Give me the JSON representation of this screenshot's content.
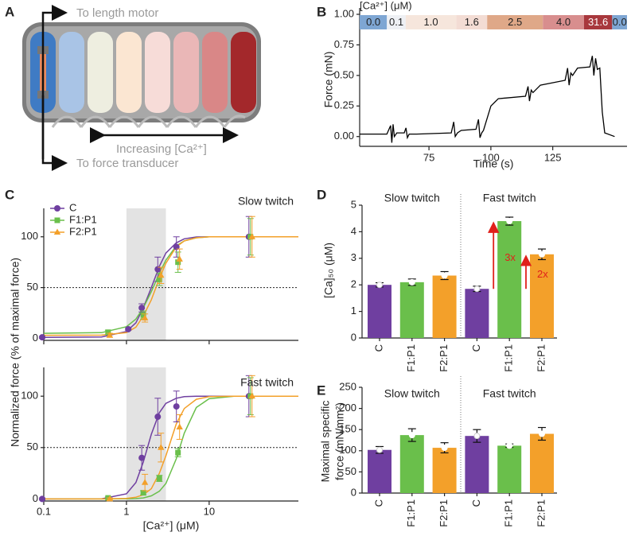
{
  "diagram": {
    "panel": "A",
    "labels": [
      "To length motor",
      "Increasing [Ca²⁺]",
      "To force transducer"
    ]
  },
  "chart_data": [
    {
      "panel": "B",
      "type": "line",
      "x_label": "Time (s)",
      "y_label": "Force (mN)",
      "xlim": [
        47,
        155
      ],
      "xticks": [
        75,
        100,
        125
      ],
      "ylim": [
        -0.08,
        1.0
      ],
      "yticks": [
        {
          "value": 0,
          "label": "0.00"
        },
        {
          "value": 0.25,
          "label": "0.25"
        },
        {
          "value": 0.5,
          "label": "0.50"
        },
        {
          "value": 0.75,
          "label": "0.75"
        },
        {
          "value": 1.0,
          "label": "1.00"
        }
      ],
      "color": "#000000",
      "x": [
        47,
        58,
        59.5,
        60,
        60.5,
        61,
        62,
        65,
        65.7,
        66.3,
        67,
        70,
        84,
        85,
        85.6,
        86.5,
        88,
        94,
        95,
        95.6,
        96.3,
        97,
        100,
        103,
        114,
        115,
        115.6,
        116.3,
        117,
        120,
        130,
        131,
        131.6,
        132.3,
        133,
        135,
        140,
        141,
        141.6,
        142.3,
        143,
        144,
        145,
        146,
        150
      ],
      "values": [
        0.02,
        0.02,
        0.09,
        -0.05,
        0.1,
        0.0,
        0.03,
        0.03,
        0.07,
        -0.01,
        0.02,
        0.02,
        0.03,
        0.12,
        0.0,
        0.03,
        0.05,
        0.06,
        0.14,
        -0.01,
        0.03,
        0.05,
        0.25,
        0.31,
        0.33,
        0.41,
        0.29,
        0.38,
        0.36,
        0.42,
        0.46,
        0.56,
        0.42,
        0.52,
        0.5,
        0.56,
        0.57,
        0.66,
        0.5,
        0.64,
        0.55,
        0.56,
        0.2,
        0.03,
        0.0
      ],
      "ca_bar": {
        "title": "[Ca²⁺] (μM)",
        "labels": [
          "0.0",
          "0.1",
          "1.0",
          "1.6",
          "2.5",
          "4.0",
          "31.6",
          "0.0"
        ],
        "edges": [
          47,
          58,
          65.6,
          86,
          98.5,
          121,
          137.6,
          149,
          155
        ],
        "colors": [
          "#7ea6d3",
          "#eef0f4",
          "#f6e6dc",
          "#f3dcd4",
          "#dfa888",
          "#d88e8e",
          "#a8383d",
          "#7ea6d3"
        ]
      }
    },
    {
      "panel": "C",
      "type": "scatter",
      "log_x": true,
      "x_label": "[Ca²⁺] (μM)",
      "y_label": "Normalized force (% of maximal force)",
      "xlim": [
        0.1,
        120
      ],
      "xticks": [
        0.1,
        1,
        10
      ],
      "shade": [
        1,
        3
      ],
      "reference_line": 50,
      "legend": "upper left",
      "subplots": [
        {
          "title": "Slow twitch",
          "ylim": [
            -2,
            128
          ],
          "yticks": [
            0,
            50,
            100
          ],
          "x": [
            0.1,
            0.6,
            1.1,
            1.6,
            2.5,
            4.2,
            31.6
          ],
          "series": [
            {
              "name": "C",
              "color": "#6f3fa0",
              "marker": "circle",
              "values": [
                1,
                null,
                9,
                30,
                68,
                90,
                100
              ],
              "errors": [
                1,
                null,
                1,
                4,
                12,
                10,
                20
              ]
            },
            {
              "name": "F1:P1",
              "color": "#6abf4b",
              "marker": "square",
              "values": [
                null,
                6,
                null,
                23,
                58,
                75,
                100
              ],
              "errors": [
                null,
                2,
                null,
                4,
                6,
                10,
                18
              ]
            },
            {
              "name": "F2:P1",
              "color": "#f3a02a",
              "marker": "triangle",
              "values": [
                null,
                3,
                null,
                20,
                62,
                78,
                100
              ],
              "errors": [
                null,
                2,
                null,
                4,
                8,
                10,
                20
              ]
            }
          ],
          "fit_x": [
            0.1,
            0.5,
            1,
            1.3,
            1.6,
            2,
            2.5,
            3,
            4,
            5,
            7,
            10,
            20,
            40,
            120
          ],
          "fits": [
            [
              1,
              1.4,
              6.8,
              15.3,
              30,
              50,
              71,
              84,
              94,
              98,
              99.8,
              100,
              100,
              100,
              100
            ],
            [
              5,
              5.6,
              11.5,
              19,
              30,
              46,
              64,
              77,
              91,
              96,
              99,
              100,
              100,
              100,
              100
            ],
            [
              3,
              3.2,
              5.6,
              11,
              22,
              38,
              59,
              74,
              90,
              96,
              99,
              100,
              100,
              100,
              100
            ]
          ]
        },
        {
          "title": "Fast twitch",
          "ylim": [
            -2,
            128
          ],
          "yticks": [
            0,
            50,
            100
          ],
          "x": [
            0.1,
            0.6,
            1.1,
            1.6,
            2.5,
            4.2,
            31.6
          ],
          "series": [
            {
              "color": "#6f3fa0",
              "marker": "circle",
              "values": [
                0,
                null,
                null,
                40,
                80,
                90,
                100
              ],
              "errors": [
                1,
                null,
                null,
                12,
                18,
                15,
                20
              ]
            },
            {
              "color": "#6abf4b",
              "marker": "square",
              "values": [
                null,
                1,
                null,
                6,
                20,
                45,
                100
              ],
              "errors": [
                null,
                1,
                null,
                2,
                3,
                4,
                18
              ]
            },
            {
              "color": "#f3a02a",
              "marker": "triangle",
              "values": [
                null,
                0,
                null,
                16,
                50,
                70,
                100
              ],
              "errors": [
                null,
                1,
                null,
                8,
                14,
                12,
                20
              ]
            }
          ],
          "fit_x": [
            0.1,
            0.5,
            1,
            1.3,
            1.6,
            2,
            2.5,
            3,
            4,
            5,
            7,
            10,
            20,
            40,
            120
          ],
          "fits": [
            [
              0,
              0.2,
              5,
              16,
              36,
              63,
              84,
              93,
              98,
              99.5,
              100,
              100,
              100,
              100,
              100
            ],
            [
              0,
              0,
              0.1,
              0.4,
              1,
              3,
              7.5,
              15,
              39,
              64,
              89,
              97.5,
              100,
              100,
              100
            ],
            [
              0,
              0,
              0.5,
              1.7,
              4,
              10,
              25,
              42,
              73,
              88,
              97,
              99.5,
              100,
              100,
              100
            ]
          ]
        }
      ]
    },
    {
      "panel": "D",
      "type": "bar",
      "y_label": "[Ca]₅₀ (μM)",
      "groups": [
        "Slow twitch",
        "Fast twitch"
      ],
      "categories": [
        "C",
        "F1:P1",
        "F2:P1",
        "C",
        "F1:P1",
        "F2:P1"
      ],
      "values": [
        2.0,
        2.1,
        2.35,
        1.85,
        4.4,
        3.15
      ],
      "errors": [
        0.08,
        0.12,
        0.15,
        0.1,
        0.15,
        0.2
      ],
      "colors": [
        "#6f3fa0",
        "#6abf4b",
        "#f3a02a",
        "#6f3fa0",
        "#6abf4b",
        "#f3a02a"
      ],
      "ylim": [
        0,
        5
      ],
      "yticks": [
        0,
        1,
        2,
        3,
        4,
        5
      ],
      "annotations": [
        "3x",
        "2x"
      ],
      "annotation_color": "#e0201b"
    },
    {
      "panel": "E",
      "type": "bar",
      "y_label": [
        "Maximal specific",
        "force (mN/mm²)"
      ],
      "groups": [
        "Slow twitch",
        "Fast twitch"
      ],
      "categories": [
        "C",
        "F1:P1",
        "F2:P1",
        "C",
        "F1:P1",
        "F2:P1"
      ],
      "values": [
        102,
        137,
        107,
        135,
        112,
        140
      ],
      "errors": [
        8,
        15,
        12,
        15,
        4,
        15
      ],
      "colors": [
        "#6f3fa0",
        "#6abf4b",
        "#f3a02a",
        "#6f3fa0",
        "#6abf4b",
        "#f3a02a"
      ],
      "ylim": [
        0,
        250
      ],
      "yticks": [
        0,
        50,
        100,
        150,
        200,
        250
      ]
    }
  ]
}
